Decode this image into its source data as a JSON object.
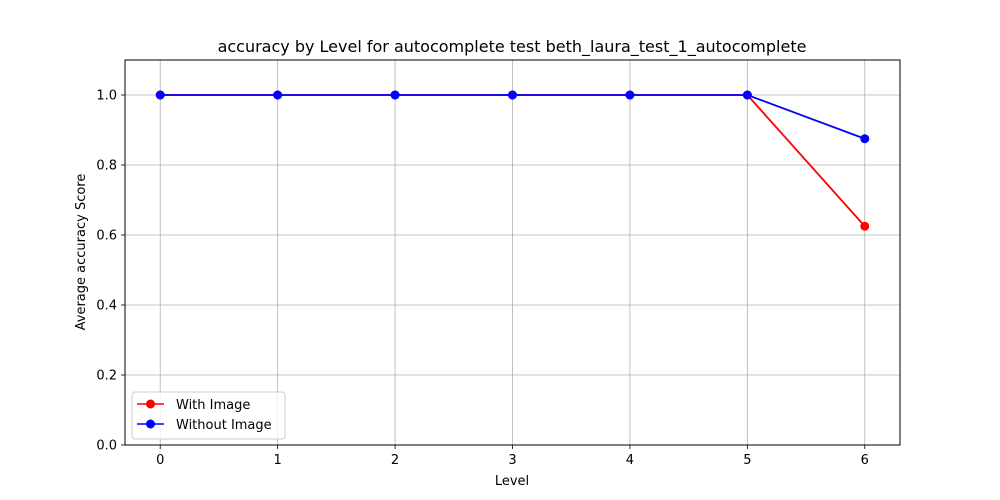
{
  "chart_data": {
    "type": "line",
    "title": "accuracy by Level for autocomplete test beth_laura_test_1_autocomplete",
    "xlabel": "Level",
    "ylabel": "Average accuracy Score",
    "x": [
      0,
      1,
      2,
      3,
      4,
      5,
      6
    ],
    "xlim": [
      -0.3,
      6.3
    ],
    "ylim": [
      0.0,
      1.1
    ],
    "xticks": [
      "0",
      "1",
      "2",
      "3",
      "4",
      "5",
      "6"
    ],
    "yticks": [
      "0.0",
      "0.2",
      "0.4",
      "0.6",
      "0.8",
      "1.0"
    ],
    "grid": true,
    "legend_position": "lower-left",
    "series": [
      {
        "name": "With Image",
        "color": "#ff0000",
        "values": [
          1.0,
          1.0,
          1.0,
          1.0,
          1.0,
          1.0,
          0.625
        ]
      },
      {
        "name": "Without Image",
        "color": "#0000ff",
        "values": [
          1.0,
          1.0,
          1.0,
          1.0,
          1.0,
          1.0,
          0.875
        ]
      }
    ]
  }
}
